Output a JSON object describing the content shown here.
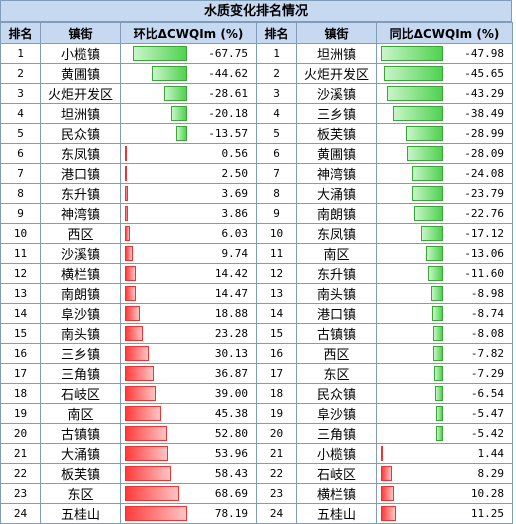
{
  "title": "水质变化排名情况",
  "left_table": {
    "headers": [
      "排名",
      "镇街",
      "环比ΔCWQIm (%)"
    ],
    "rows": [
      {
        "rank": "1",
        "town": "小榄镇",
        "value": -67.75
      },
      {
        "rank": "2",
        "town": "黄圃镇",
        "value": -44.62
      },
      {
        "rank": "3",
        "town": "火炬开发区",
        "value": -28.61
      },
      {
        "rank": "4",
        "town": "坦洲镇",
        "value": -20.18
      },
      {
        "rank": "5",
        "town": "民众镇",
        "value": -13.57
      },
      {
        "rank": "6",
        "town": "东凤镇",
        "value": 0.56
      },
      {
        "rank": "7",
        "town": "港口镇",
        "value": 2.5
      },
      {
        "rank": "8",
        "town": "东升镇",
        "value": 3.69
      },
      {
        "rank": "9",
        "town": "神湾镇",
        "value": 3.86
      },
      {
        "rank": "10",
        "town": "西区",
        "value": 6.03
      },
      {
        "rank": "11",
        "town": "沙溪镇",
        "value": 9.74
      },
      {
        "rank": "12",
        "town": "横栏镇",
        "value": 14.42
      },
      {
        "rank": "13",
        "town": "南朗镇",
        "value": 14.47
      },
      {
        "rank": "14",
        "town": "阜沙镇",
        "value": 18.88
      },
      {
        "rank": "15",
        "town": "南头镇",
        "value": 23.28
      },
      {
        "rank": "16",
        "town": "三乡镇",
        "value": 30.13
      },
      {
        "rank": "17",
        "town": "三角镇",
        "value": 36.87
      },
      {
        "rank": "18",
        "town": "石岐区",
        "value": 39.0
      },
      {
        "rank": "19",
        "town": "南区",
        "value": 45.38
      },
      {
        "rank": "20",
        "town": "古镇镇",
        "value": 52.8
      },
      {
        "rank": "21",
        "town": "大涌镇",
        "value": 53.96
      },
      {
        "rank": "22",
        "town": "板芙镇",
        "value": 58.43
      },
      {
        "rank": "23",
        "town": "东区",
        "value": 68.69
      },
      {
        "rank": "24",
        "town": "五桂山",
        "value": 78.19
      }
    ]
  },
  "right_table": {
    "headers": [
      "排名",
      "镇街",
      "同比ΔCWQIm (%)"
    ],
    "rows": [
      {
        "rank": "1",
        "town": "坦洲镇",
        "value": -47.98
      },
      {
        "rank": "2",
        "town": "火炬开发区",
        "value": -45.65
      },
      {
        "rank": "3",
        "town": "沙溪镇",
        "value": -43.29
      },
      {
        "rank": "4",
        "town": "三乡镇",
        "value": -38.49
      },
      {
        "rank": "5",
        "town": "板芙镇",
        "value": -28.99
      },
      {
        "rank": "6",
        "town": "黄圃镇",
        "value": -28.09
      },
      {
        "rank": "7",
        "town": "神湾镇",
        "value": -24.08
      },
      {
        "rank": "8",
        "town": "大涌镇",
        "value": -23.79
      },
      {
        "rank": "9",
        "town": "南朗镇",
        "value": -22.76
      },
      {
        "rank": "10",
        "town": "东凤镇",
        "value": -17.12
      },
      {
        "rank": "11",
        "town": "南区",
        "value": -13.06
      },
      {
        "rank": "12",
        "town": "东升镇",
        "value": -11.6
      },
      {
        "rank": "13",
        "town": "南头镇",
        "value": -8.98
      },
      {
        "rank": "14",
        "town": "港口镇",
        "value": -8.74
      },
      {
        "rank": "15",
        "town": "古镇镇",
        "value": -8.08
      },
      {
        "rank": "16",
        "town": "西区",
        "value": -7.82
      },
      {
        "rank": "17",
        "town": "东区",
        "value": -7.29
      },
      {
        "rank": "18",
        "town": "民众镇",
        "value": -6.54
      },
      {
        "rank": "19",
        "town": "阜沙镇",
        "value": -5.47
      },
      {
        "rank": "20",
        "town": "三角镇",
        "value": -5.42
      },
      {
        "rank": "21",
        "town": "小榄镇",
        "value": 1.44
      },
      {
        "rank": "22",
        "town": "石岐区",
        "value": 8.29
      },
      {
        "rank": "23",
        "town": "横栏镇",
        "value": 10.28
      },
      {
        "rank": "24",
        "town": "五桂山",
        "value": 11.25
      }
    ]
  },
  "colors": {
    "positive": "#ff3b3b",
    "negative": "#4fd24f",
    "header": "#c6d9f1"
  },
  "chart_data": [
    {
      "type": "table",
      "title": "水质变化排名情况",
      "columns": [
        "排名",
        "镇街",
        "环比ΔCWQIm (%)"
      ],
      "categories": [
        "小榄镇",
        "黄圃镇",
        "火炬开发区",
        "坦洲镇",
        "民众镇",
        "东凤镇",
        "港口镇",
        "东升镇",
        "神湾镇",
        "西区",
        "沙溪镇",
        "横栏镇",
        "南朗镇",
        "阜沙镇",
        "南头镇",
        "三乡镇",
        "三角镇",
        "石岐区",
        "南区",
        "古镇镇",
        "大涌镇",
        "板芙镇",
        "东区",
        "五桂山"
      ],
      "values": [
        -67.75,
        -44.62,
        -28.61,
        -20.18,
        -13.57,
        0.56,
        2.5,
        3.69,
        3.86,
        6.03,
        9.74,
        14.42,
        14.47,
        18.88,
        23.28,
        30.13,
        36.87,
        39.0,
        45.38,
        52.8,
        53.96,
        58.43,
        68.69,
        78.19
      ]
    },
    {
      "type": "table",
      "title": "水质变化排名情况",
      "columns": [
        "排名",
        "镇街",
        "同比ΔCWQIm (%)"
      ],
      "categories": [
        "坦洲镇",
        "火炬开发区",
        "沙溪镇",
        "三乡镇",
        "板芙镇",
        "黄圃镇",
        "神湾镇",
        "大涌镇",
        "南朗镇",
        "东凤镇",
        "南区",
        "东升镇",
        "南头镇",
        "港口镇",
        "古镇镇",
        "西区",
        "东区",
        "民众镇",
        "阜沙镇",
        "三角镇",
        "小榄镇",
        "石岐区",
        "横栏镇",
        "五桂山"
      ],
      "values": [
        -47.98,
        -45.65,
        -43.29,
        -38.49,
        -28.99,
        -28.09,
        -24.08,
        -23.79,
        -22.76,
        -17.12,
        -13.06,
        -11.6,
        -8.98,
        -8.74,
        -8.08,
        -7.82,
        -7.29,
        -6.54,
        -5.47,
        -5.42,
        1.44,
        8.29,
        10.28,
        11.25
      ]
    }
  ]
}
